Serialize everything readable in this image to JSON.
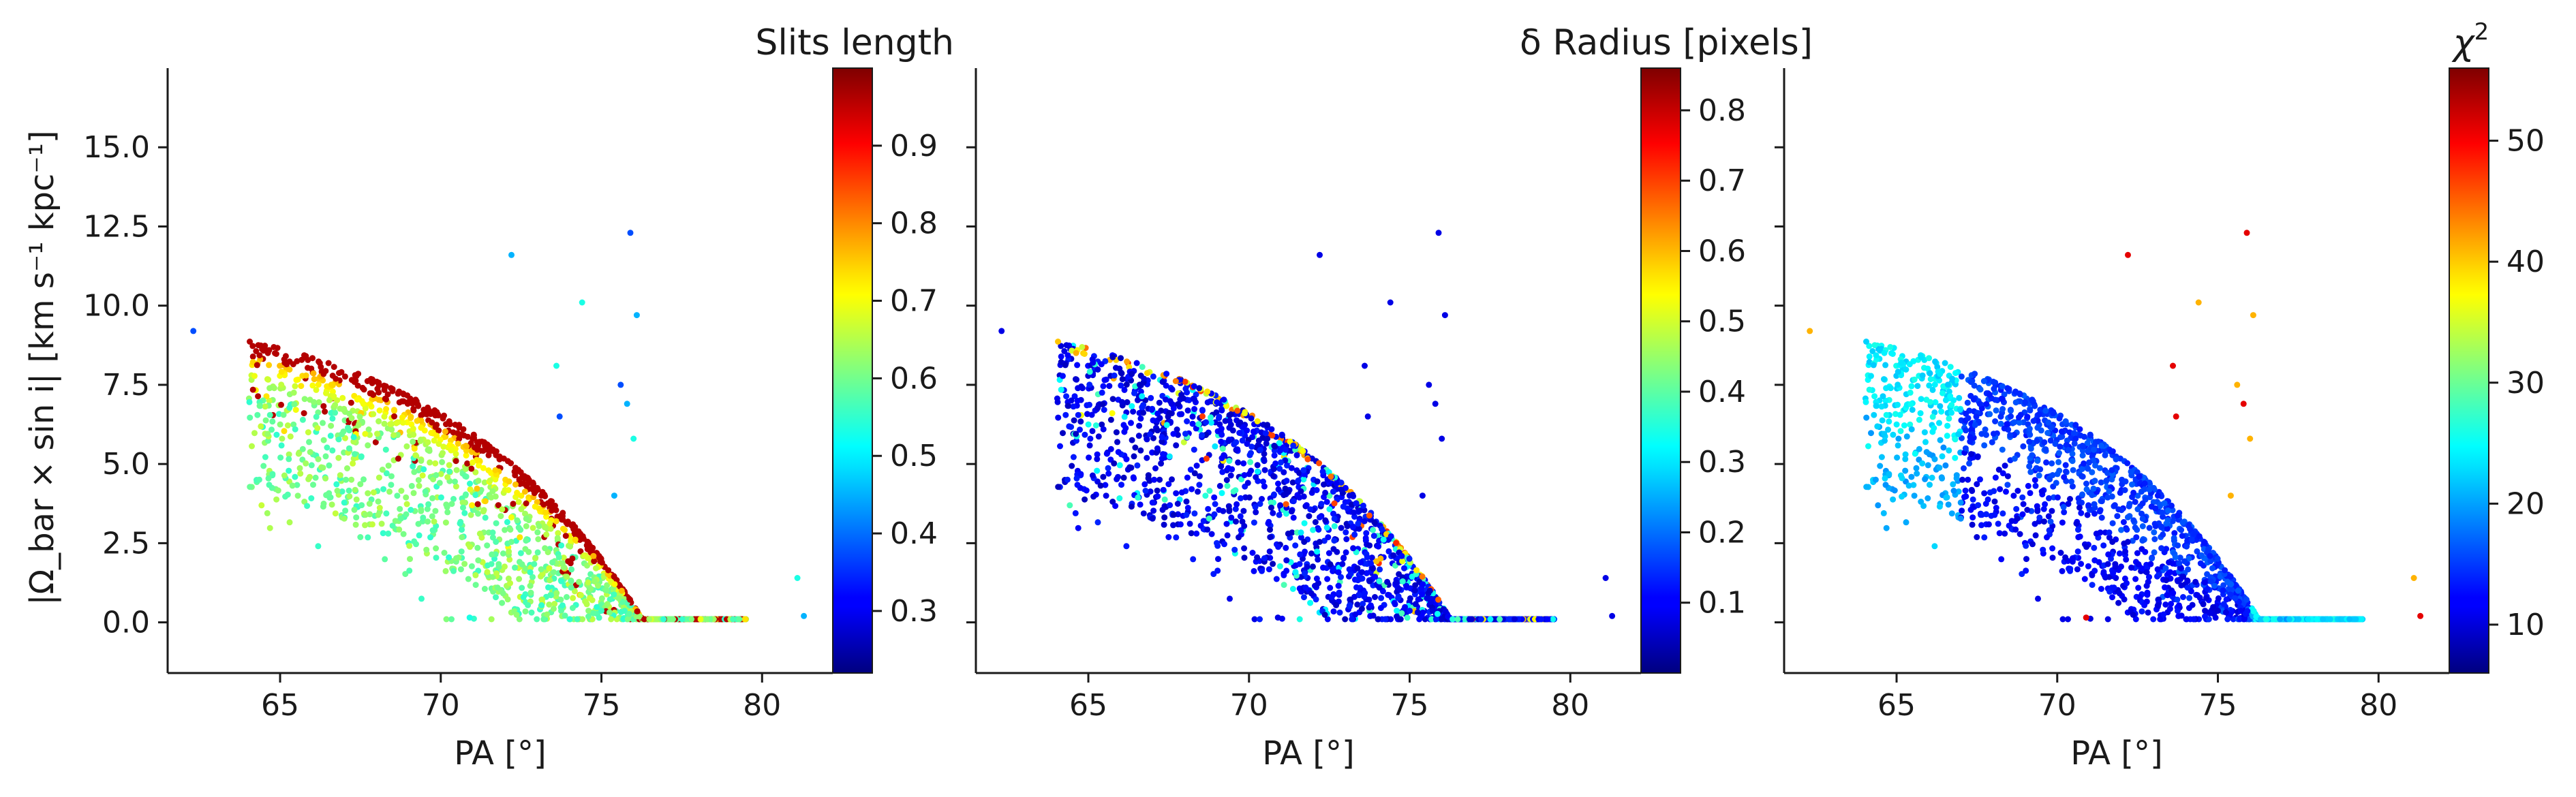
{
  "figure": {
    "ylabel": "|Ω_bar × sin i|   [km s⁻¹ kpc⁻¹]",
    "xlabel": "PA [°]"
  },
  "chart_data": [
    {
      "type": "scatter",
      "colorbar_label": "Slits length",
      "xlim": [
        61.5,
        82.2
      ],
      "ylim": [
        -1.6,
        17.5
      ],
      "xticks": [
        "65",
        "70",
        "75",
        "80"
      ],
      "yticks": [
        "0.0",
        "2.5",
        "5.0",
        "7.5",
        "10.0",
        "12.5",
        "15.0"
      ],
      "colormap": "jet",
      "color_range": [
        0.22,
        1.0
      ],
      "colorbar_ticks": [
        "0.3",
        "0.4",
        "0.5",
        "0.6",
        "0.7",
        "0.8",
        "0.9"
      ],
      "pattern": "upper ridge red (high), interior green-yellow, lower scatter cyan"
    },
    {
      "type": "scatter",
      "colorbar_label": "δ Radius [pixels]",
      "xlim": [
        61.5,
        82.2
      ],
      "ylim": [
        -1.6,
        17.5
      ],
      "xticks": [
        "65",
        "70",
        "75",
        "80"
      ],
      "colormap": "jet",
      "color_range": [
        0.0,
        0.86
      ],
      "colorbar_ticks": [
        "0.1",
        "0.2",
        "0.3",
        "0.4",
        "0.5",
        "0.6",
        "0.7",
        "0.8"
      ],
      "pattern": "mostly dark blue (low), thin edge of cyan/yellow points"
    },
    {
      "type": "scatter",
      "colorbar_label": "χ²",
      "xlim": [
        61.5,
        82.2
      ],
      "ylim": [
        -1.6,
        17.5
      ],
      "xticks": [
        "65",
        "70",
        "75",
        "80"
      ],
      "colormap": "jet",
      "color_range": [
        6.0,
        56.0
      ],
      "colorbar_ticks": [
        "10",
        "20",
        "30",
        "40",
        "50"
      ],
      "pattern": "blue band in middle, cyan at ends, few orange/red outliers"
    }
  ],
  "colors": {
    "axis": "#1a1a1a",
    "jet_low": "#00007f",
    "jet_high": "#7f0000"
  }
}
